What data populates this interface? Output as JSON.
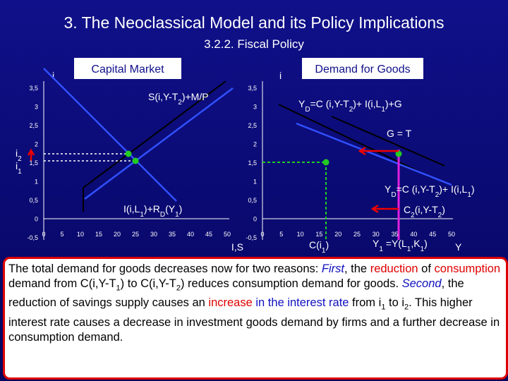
{
  "title": "3. The Neoclassical Model and its Policy Implications",
  "subtitle": "3.2.2. Fiscal Policy",
  "left": {
    "axis_label": "i",
    "title": "Capital Market",
    "yticks": [
      "3,5",
      "3",
      "2,5",
      "2",
      "1,5",
      "1",
      "0,5",
      "0",
      "-0,5"
    ],
    "xticks": [
      "0",
      "5",
      "10",
      "15",
      "20",
      "25",
      "30",
      "35",
      "40",
      "45",
      "50"
    ],
    "supply": [
      "S(i,Y-T",
      "2",
      ")+M/P"
    ],
    "demand": [
      "I(i,L",
      "1",
      ")+R",
      "D",
      "(Y",
      "1",
      ")"
    ],
    "i2": [
      "i",
      "2"
    ],
    "i1": [
      "i",
      "1"
    ],
    "x_label": "I,S"
  },
  "right": {
    "axis_label": "i",
    "title": "Demand for Goods",
    "yticks": [
      "3,5",
      "3",
      "2,5",
      "2",
      "1,5",
      "1",
      "0,5",
      "0",
      "-0,5"
    ],
    "xticks": [
      "0",
      "5",
      "10",
      "15",
      "20",
      "25",
      "30",
      "35",
      "40",
      "45",
      "50"
    ],
    "demand_new": [
      "Y",
      "D",
      "=C (i,Y-T",
      "2",
      ")+ I(i,L",
      "1",
      ")+G"
    ],
    "g_equals_t": "G = T",
    "demand_old": [
      "Y",
      "D",
      "=C (i,Y-T",
      "2",
      ")+ I(i,L",
      "1",
      ")"
    ],
    "consumption": [
      "C",
      "2",
      "(i,Y-T",
      "2",
      ")"
    ],
    "c_i1": [
      "C(i",
      "1",
      ")"
    ],
    "output": [
      "Y",
      "1",
      " =Y(L",
      "1",
      ",K",
      "1",
      ")"
    ],
    "x_label": "Y"
  },
  "paragraph": [
    "The total demand for goods decreases now for two reasons: ",
    "First",
    ", the ",
    "reduction",
    " of ",
    "consumption",
    " demand from C(i,Y-T",
    "1",
    ") to C(i,Y-T",
    "2",
    ") reduces consumption demand for goods. ",
    "Second",
    ", the reduction of savings supply causes an ",
    "increase",
    " in the interest rate",
    " from i",
    "1",
    " to i",
    "2",
    ". This higher interest rate causes a decrease in investment goods demand by firms and a further decrease in consumption demand."
  ]
}
